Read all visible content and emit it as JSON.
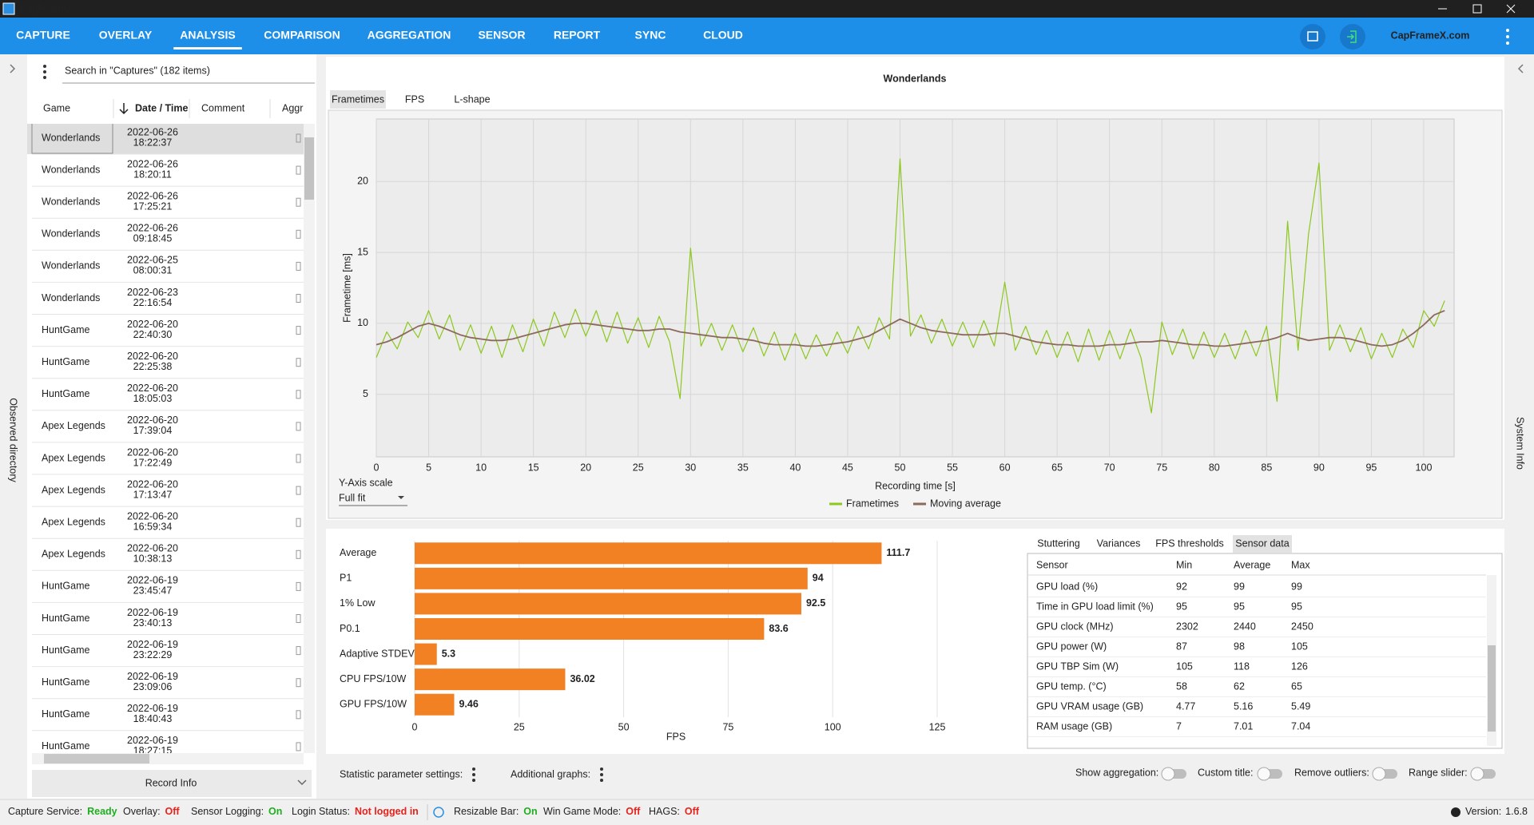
{
  "window": {
    "title": "CapFrameX",
    "brand": "CapFrameX.com"
  },
  "nav": {
    "tabs": [
      "CAPTURE",
      "OVERLAY",
      "ANALYSIS",
      "COMPARISON",
      "AGGREGATION",
      "SENSOR",
      "REPORT",
      "SYNC",
      "CLOUD"
    ],
    "active": 2
  },
  "captures": {
    "search": "Search in \"Captures\" (182 items)",
    "columns": [
      "Game",
      "Date / Time",
      "Comment",
      "Aggr"
    ],
    "selected": 0,
    "rows": [
      [
        "Wonderlands",
        "2022-06-26",
        "18:22:37"
      ],
      [
        "Wonderlands",
        "2022-06-26",
        "18:20:11"
      ],
      [
        "Wonderlands",
        "2022-06-26",
        "17:25:21"
      ],
      [
        "Wonderlands",
        "2022-06-26",
        "09:18:45"
      ],
      [
        "Wonderlands",
        "2022-06-25",
        "08:00:31"
      ],
      [
        "Wonderlands",
        "2022-06-23",
        "22:16:54"
      ],
      [
        "HuntGame",
        "2022-06-20",
        "22:40:30"
      ],
      [
        "HuntGame",
        "2022-06-20",
        "22:25:38"
      ],
      [
        "HuntGame",
        "2022-06-20",
        "18:05:03"
      ],
      [
        "Apex Legends",
        "2022-06-20",
        "17:39:04"
      ],
      [
        "Apex Legends",
        "2022-06-20",
        "17:22:49"
      ],
      [
        "Apex Legends",
        "2022-06-20",
        "17:13:47"
      ],
      [
        "Apex Legends",
        "2022-06-20",
        "16:59:34"
      ],
      [
        "Apex Legends",
        "2022-06-20",
        "10:38:13"
      ],
      [
        "HuntGame",
        "2022-06-19",
        "23:45:47"
      ],
      [
        "HuntGame",
        "2022-06-19",
        "23:40:13"
      ],
      [
        "HuntGame",
        "2022-06-19",
        "23:22:29"
      ],
      [
        "HuntGame",
        "2022-06-19",
        "23:09:06"
      ],
      [
        "HuntGame",
        "2022-06-19",
        "18:40:43"
      ],
      [
        "HuntGame",
        "2022-06-19",
        "18:27:15"
      ]
    ],
    "record_info": "Record Info",
    "side_label": "Observed directory"
  },
  "chart_tabs": {
    "tabs": [
      "Frametimes",
      "FPS",
      "L-shape"
    ],
    "active": 0
  },
  "y_axis_scale": {
    "label": "Y-Axis scale",
    "value": "Full fit"
  },
  "chart_data": [
    {
      "type": "line",
      "title": "Wonderlands",
      "x_label": "Recording time [s]",
      "y_label": "Frametime [ms]",
      "x": [
        0,
        1,
        2,
        3,
        4,
        5,
        6,
        7,
        8,
        9,
        10,
        11,
        12,
        13,
        14,
        15,
        16,
        17,
        18,
        19,
        20,
        21,
        22,
        23,
        24,
        25,
        26,
        27,
        28,
        29,
        30,
        31,
        32,
        33,
        34,
        35,
        36,
        37,
        38,
        39,
        40,
        41,
        42,
        43,
        44,
        45,
        46,
        47,
        48,
        49,
        50,
        51,
        52,
        53,
        54,
        55,
        56,
        57,
        58,
        59,
        60,
        61,
        62,
        63,
        64,
        65,
        66,
        67,
        68,
        69,
        70,
        71,
        72,
        73,
        74,
        75,
        76,
        77,
        78,
        79,
        80,
        81,
        82,
        83,
        84,
        85,
        86,
        87,
        88,
        89,
        90,
        91,
        92,
        93,
        94,
        95,
        96,
        97,
        98,
        99,
        100,
        101,
        102
      ],
      "series": [
        {
          "name": "Frametimes",
          "color": "#8cc81e",
          "width": 1.2,
          "values": [
            7.6,
            9.4,
            8.2,
            10.1,
            9.0,
            10.9,
            8.9,
            10.6,
            8.1,
            9.9,
            7.9,
            9.8,
            7.6,
            9.9,
            8.0,
            10.3,
            8.4,
            10.8,
            9.0,
            11.0,
            9.1,
            10.9,
            8.7,
            10.8,
            8.6,
            10.4,
            8.3,
            10.5,
            8.7,
            4.7,
            15.3,
            8.4,
            10.0,
            8.1,
            9.9,
            8.0,
            9.7,
            7.7,
            9.4,
            7.4,
            9.3,
            7.5,
            9.2,
            7.7,
            9.4,
            7.9,
            9.8,
            8.2,
            10.4,
            8.9,
            21.6,
            9.1,
            10.6,
            8.6,
            10.3,
            8.4,
            10.1,
            8.3,
            10.2,
            8.4,
            12.9,
            8.1,
            9.8,
            7.8,
            9.5,
            7.6,
            9.4,
            7.3,
            9.6,
            7.4,
            9.5,
            7.5,
            9.6,
            7.6,
            3.7,
            10.1,
            7.8,
            9.6,
            7.5,
            9.4,
            7.6,
            9.3,
            7.5,
            9.5,
            7.7,
            9.8,
            4.5,
            17.2,
            8.1,
            16.3,
            21.3,
            8.1,
            9.9,
            8.0,
            9.7,
            7.5,
            9.3,
            7.6,
            9.6,
            8.3,
            10.9,
            9.8,
            11.6
          ]
        },
        {
          "name": "Moving average",
          "color": "#8b6a5c",
          "width": 1.8,
          "values": [
            8.5,
            8.7,
            9.0,
            9.4,
            9.8,
            10.0,
            9.8,
            9.5,
            9.2,
            9.0,
            8.9,
            8.8,
            8.8,
            8.9,
            9.1,
            9.3,
            9.5,
            9.7,
            9.9,
            10.0,
            10.0,
            9.9,
            9.8,
            9.7,
            9.6,
            9.5,
            9.5,
            9.6,
            9.6,
            9.4,
            9.3,
            9.2,
            9.1,
            9.0,
            9.0,
            8.9,
            8.8,
            8.6,
            8.5,
            8.5,
            8.5,
            8.4,
            8.4,
            8.5,
            8.6,
            8.7,
            8.9,
            9.1,
            9.5,
            9.9,
            10.3,
            10.0,
            9.7,
            9.5,
            9.4,
            9.3,
            9.2,
            9.2,
            9.2,
            9.3,
            9.3,
            9.1,
            8.9,
            8.7,
            8.6,
            8.5,
            8.5,
            8.4,
            8.4,
            8.4,
            8.5,
            8.5,
            8.6,
            8.7,
            8.7,
            8.8,
            8.7,
            8.6,
            8.5,
            8.5,
            8.4,
            8.4,
            8.5,
            8.6,
            8.7,
            8.8,
            9.0,
            9.3,
            9.0,
            8.8,
            8.9,
            9.0,
            9.0,
            8.9,
            8.7,
            8.5,
            8.4,
            8.5,
            8.8,
            9.3,
            9.9,
            10.6,
            10.9
          ]
        }
      ],
      "xlim": [
        0,
        102.9
      ],
      "ylim": [
        0.6,
        24.4
      ],
      "xticks": [
        0,
        5,
        10,
        15,
        20,
        25,
        30,
        35,
        40,
        45,
        50,
        55,
        60,
        65,
        70,
        75,
        80,
        85,
        90,
        95,
        100
      ],
      "yticks": [
        5,
        10,
        15,
        20
      ],
      "grid": true,
      "legend": "bottom"
    },
    {
      "type": "bar",
      "orientation": "horizontal",
      "x_label": "FPS",
      "categories": [
        "Average",
        "P1",
        "1% Low",
        "P0.1",
        "Adaptive STDEV",
        "CPU FPS/10W",
        "GPU FPS/10W"
      ],
      "values": [
        111.7,
        94,
        92.5,
        83.6,
        5.3,
        36.02,
        9.46
      ],
      "color": "#f28124",
      "xlim": [
        0,
        125
      ],
      "xticks": [
        0,
        25,
        50,
        75,
        100,
        125
      ],
      "grid": true
    }
  ],
  "sensor": {
    "tabs": [
      "Stuttering",
      "Variances",
      "FPS thresholds",
      "Sensor data"
    ],
    "active": 3,
    "columns": [
      "Sensor",
      "Min",
      "Average",
      "Max"
    ],
    "rows": [
      [
        "GPU load (%)",
        92,
        99,
        99
      ],
      [
        "Time in GPU load limit (%)",
        95,
        95,
        95
      ],
      [
        "GPU clock (MHz)",
        2302,
        2440,
        2450
      ],
      [
        "GPU power (W)",
        87,
        98,
        105
      ],
      [
        "GPU TBP Sim (W)",
        105,
        118,
        126
      ],
      [
        "GPU temp. (°C)",
        58,
        62,
        65
      ],
      [
        "GPU VRAM usage (GB)",
        4.77,
        5.16,
        5.49
      ],
      [
        "RAM usage (GB)",
        7,
        7.01,
        7.04
      ]
    ]
  },
  "settings": {
    "statistic": "Statistic parameter settings:",
    "graphs": "Additional graphs:",
    "toggles": [
      "Show aggregation:",
      "Custom title:",
      "Remove outliers:",
      "Range slider:"
    ]
  },
  "status": {
    "items": [
      {
        "label": "Capture Service:",
        "value": "Ready",
        "color": "#1fae1f"
      },
      {
        "label": "Overlay:",
        "value": "Off",
        "color": "#e5231d"
      },
      {
        "label": "Sensor Logging:",
        "value": "On",
        "color": "#1fae1f"
      },
      {
        "label": "Login Status:",
        "value": "Not logged in",
        "color": "#e5231d"
      },
      {
        "label": "Resizable Bar:",
        "value": "On",
        "color": "#1fae1f"
      },
      {
        "label": "Win Game Mode:",
        "value": "Off",
        "color": "#e5231d"
      },
      {
        "label": "HAGS:",
        "value": "Off",
        "color": "#e5231d"
      }
    ],
    "version": {
      "label": "Version:",
      "value": "1.6.8"
    }
  },
  "system_info": "System Info"
}
